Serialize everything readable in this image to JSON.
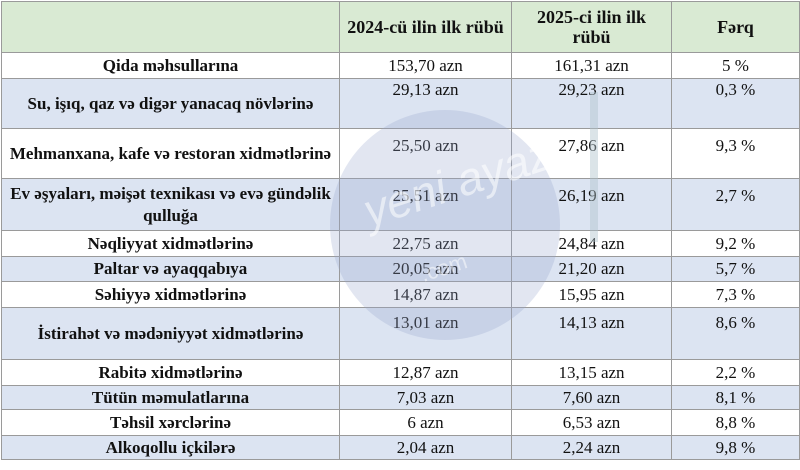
{
  "header": {
    "col1": "",
    "col2": "2024-cü ilin ilk rübü",
    "col3": "2025-ci ilin ilk rübü",
    "col4": "Fərq"
  },
  "rows": [
    {
      "category": "Qida məhsullarına",
      "v2024": "153,70  azn",
      "v2025": "161,31 azn",
      "diff": "5 %"
    },
    {
      "category": "Su, işıq, qaz və digər yanacaq növlərinə",
      "v2024": "29,13 azn",
      "v2025": "29,23 azn",
      "diff": "0,3 %"
    },
    {
      "category": "Mehmanxana, kafe və restoran xidmətlərinə",
      "v2024": "25,50 azn",
      "v2025": "27,86 azn",
      "diff": "9,3 %"
    },
    {
      "category": "Ev əşyaları, məişət texnikası və evə gündəlik qulluğa",
      "v2024": "25,51 azn",
      "v2025": "26,19 azn",
      "diff": "2,7 %"
    },
    {
      "category": "Nəqliyyat xidmətlərinə",
      "v2024": "22,75 azn",
      "v2025": "24,84 azn",
      "diff": "9,2 %"
    },
    {
      "category": "Paltar və ayaqqabıya",
      "v2024": "20,05 azn",
      "v2025": "21,20 azn",
      "diff": "5,7 %"
    },
    {
      "category": "Səhiyyə xidmətlərinə",
      "v2024": "14,87 azn",
      "v2025": "15,95 azn",
      "diff": "7,3 %"
    },
    {
      "category": "İstirahət və mədəniyyət xidmətlərinə",
      "v2024": "13,01 azn",
      "v2025": "14,13 azn",
      "diff": "8,6 %"
    },
    {
      "category": "Rabitə xidmətlərinə",
      "v2024": "12,87 azn",
      "v2025": "13,15 azn",
      "diff": "2,2 %"
    },
    {
      "category": "Tütün məmulatlarına",
      "v2024": "7,03 azn",
      "v2025": "7,60 azn",
      "diff": "8,1 %"
    },
    {
      "category": "Təhsil xərclərinə",
      "v2024": "6 azn",
      "v2025": "6,53 azn",
      "diff": "8,8 %"
    },
    {
      "category": "Alkoqollu içkilərə",
      "v2024": "2,04 azn",
      "v2025": "2,24 azn",
      "diff": "9,8 %"
    }
  ],
  "watermark": {
    "text": "yeni ayaz",
    "sub": ".com",
    "color": "#96a5cd"
  },
  "colors": {
    "header_bg": "#d9ead3",
    "band_bg": "#dce4f2",
    "white_bg": "#ffffff"
  }
}
